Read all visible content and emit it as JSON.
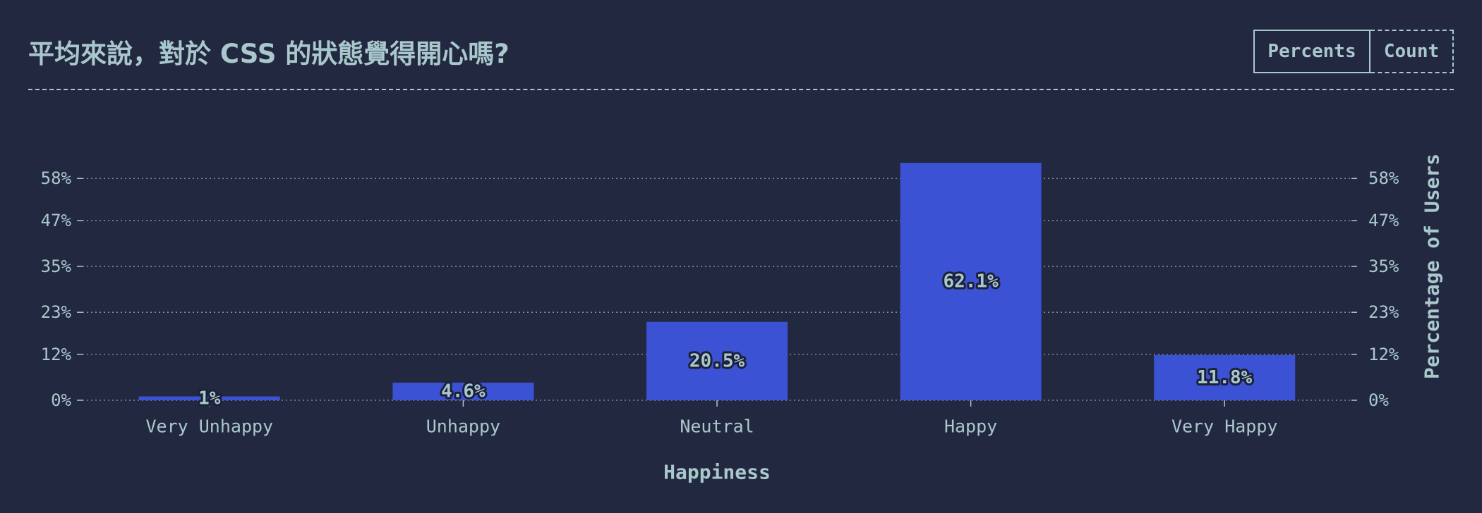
{
  "header": {
    "title": "平均來說，對於 CSS 的狀態覺得開心嗎?",
    "toggle": {
      "percents_label": "Percents",
      "count_label": "Count",
      "selected": "Percents"
    }
  },
  "colors": {
    "background": "#232841",
    "bar": "#3c52d4",
    "text": "#a9c8cc",
    "label_stroke": "#1c2038"
  },
  "chart_data": {
    "type": "bar",
    "categories": [
      "Very Unhappy",
      "Unhappy",
      "Neutral",
      "Happy",
      "Very Happy"
    ],
    "values": [
      1,
      4.6,
      20.5,
      62.1,
      11.8
    ],
    "value_labels": [
      "1%",
      "4.6%",
      "20.5%",
      "62.1%",
      "11.8%"
    ],
    "xlabel": "Happiness",
    "ylabel": "Percentage of Users",
    "yticks": [
      0,
      12,
      23,
      35,
      47,
      58
    ],
    "ytick_labels": [
      "0%",
      "12%",
      "23%",
      "35%",
      "47%",
      "58%"
    ],
    "ylim": [
      0,
      62.1
    ],
    "grid": true
  }
}
